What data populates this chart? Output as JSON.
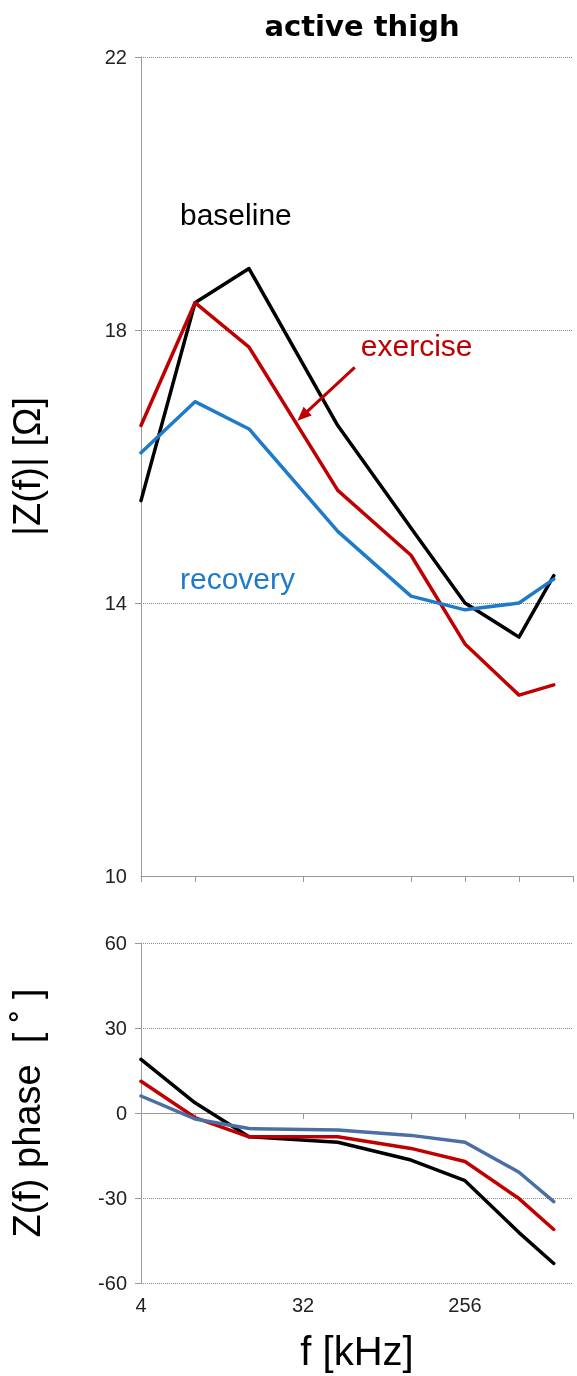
{
  "chart_data": [
    {
      "type": "line",
      "title": "active thigh",
      "ylabel": "|Z(f)| [Ω]",
      "x": [
        4,
        8,
        16,
        50,
        128,
        256,
        512,
        800
      ],
      "xlim": [
        4,
        1024
      ],
      "xticks": [
        4,
        {
          "value": 8,
          "label": null
        },
        32,
        {
          "value": 128,
          "label": null
        },
        256,
        {
          "value": 512,
          "label": null
        },
        {
          "value": 1024,
          "label": null
        }
      ],
      "log": "x",
      "ylim": [
        10,
        22
      ],
      "yticks": [
        10,
        14,
        18,
        22
      ],
      "grid": "y",
      "tick_labels": "y",
      "legend": false,
      "marker": "none",
      "line_style": "solid",
      "series": [
        {
          "name": "baseline",
          "color": "#000000",
          "values": [
            15.5,
            18.4,
            18.9,
            16.6,
            15.1,
            14.0,
            13.5,
            14.4
          ]
        },
        {
          "name": "exercise",
          "color": "#c00000",
          "values": [
            16.6,
            18.4,
            17.75,
            15.65,
            14.7,
            13.4,
            12.65,
            12.8
          ]
        },
        {
          "name": "recovery",
          "color": "#1f7bc8",
          "values": [
            16.2,
            16.95,
            16.55,
            15.05,
            14.1,
            13.9,
            14.0,
            14.35
          ]
        }
      ]
    },
    {
      "type": "line",
      "xlabel": "f [kHz]",
      "ylabel": "Z(f) phase  [ ˚ ]",
      "x": [
        4,
        8,
        16,
        50,
        128,
        256,
        512,
        800
      ],
      "xlim": [
        4,
        1024
      ],
      "xticks": [
        4,
        {
          "value": 8,
          "label": null
        },
        32,
        {
          "value": 128,
          "label": null
        },
        256,
        {
          "value": 512,
          "label": null
        },
        {
          "value": 1024,
          "label": null
        }
      ],
      "log": "x",
      "ylim": [
        -60,
        60
      ],
      "yticks": [
        -60,
        -30,
        0,
        30,
        60
      ],
      "grid": "y",
      "legend": false,
      "marker": "none",
      "line_style": "solid",
      "series": [
        {
          "color": "#000000",
          "values": [
            18.9,
            3.6,
            -8.4,
            -10.3,
            -16.6,
            -23.9,
            -42.2,
            -53.1
          ]
        },
        {
          "color": "#c00000",
          "values": [
            11.2,
            -1.6,
            -8.4,
            -8.4,
            -12.5,
            -17.1,
            -30.2,
            -41.1
          ]
        },
        {
          "color": "#4a6fa5",
          "values": [
            6.0,
            -2.1,
            -5.5,
            -6.0,
            -7.9,
            -10.3,
            -20.9,
            -31.3
          ]
        }
      ]
    }
  ]
}
